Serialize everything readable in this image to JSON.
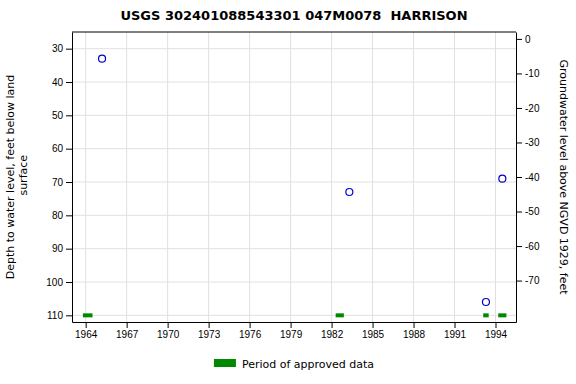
{
  "chart_data": {
    "type": "scatter",
    "title": "USGS 302401088543301 047M0078  HARRISON",
    "ylabel": "Depth to water level, feet below land\n surface",
    "y2label": "Groundwater level above NGVD 1929, feet",
    "xlim": [
      1963.0,
      1995.5
    ],
    "xticks": [
      1964,
      1967,
      1970,
      1973,
      1976,
      1979,
      1982,
      1985,
      1988,
      1991,
      1994
    ],
    "ylim": [
      112,
      25
    ],
    "yticks": [
      30,
      40,
      50,
      60,
      70,
      80,
      90,
      100,
      110
    ],
    "y2lim": [
      -82,
      2
    ],
    "y2ticks": [
      0,
      -10,
      -20,
      -30,
      -40,
      -50,
      -60,
      -70
    ],
    "grid": true,
    "legend": "bottom",
    "series": [
      {
        "type": "scatter",
        "marker": "circle",
        "color": "#0000cc",
        "x": [
          1965.2,
          1983.3,
          1993.3,
          1994.5
        ],
        "values": [
          33,
          73,
          106,
          69
        ]
      },
      {
        "type": "segment",
        "name": "Period of approved data",
        "color": "#008800",
        "x_start": [
          1963.8,
          1982.3,
          1993.1,
          1994.2
        ],
        "x_end": [
          1964.5,
          1982.9,
          1993.5,
          1994.8
        ],
        "values": [
          110,
          110,
          110,
          110
        ]
      }
    ]
  }
}
